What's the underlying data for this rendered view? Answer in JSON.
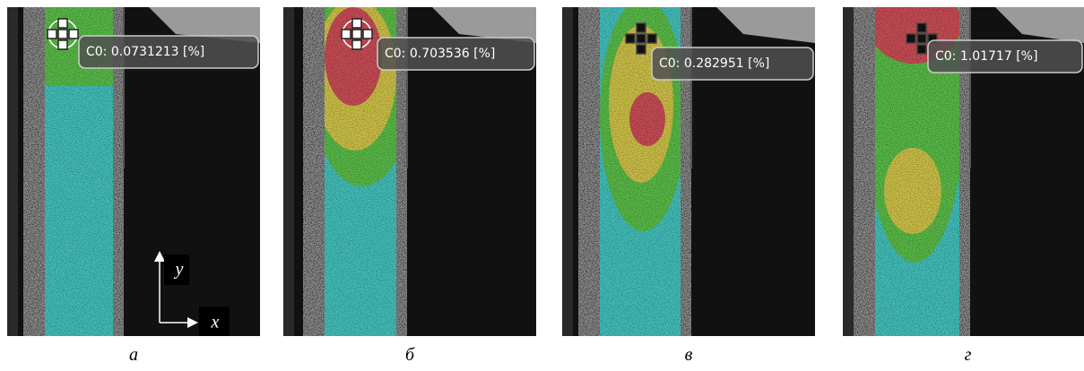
{
  "panels": [
    {
      "readout": "C0: 0.0731213 [%]",
      "caption": "а",
      "axes": {
        "y": "y",
        "x": "x"
      }
    },
    {
      "readout": "C0: 0.703536 [%]",
      "caption": "б"
    },
    {
      "readout": "C0: 0.282951 [%]",
      "caption": "в"
    },
    {
      "readout": "C0: 1.01717 [%]",
      "caption": "г"
    }
  ]
}
